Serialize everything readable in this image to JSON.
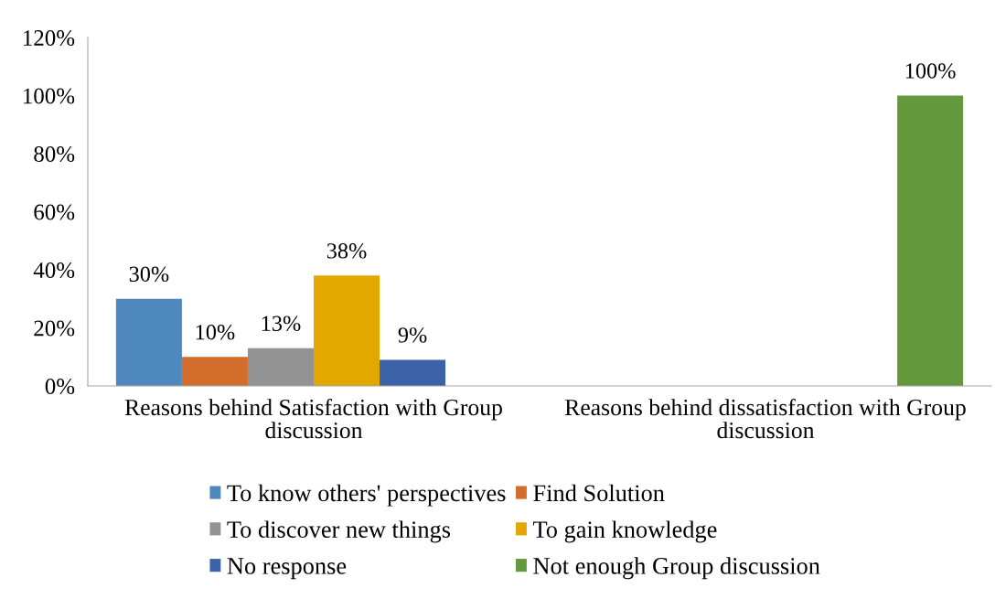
{
  "chart_data": {
    "type": "bar",
    "categories": [
      "Reasons behind Satisfaction with Group discussion",
      "Reasons behind dissatisfaction with Group discussion"
    ],
    "series": [
      {
        "name": "To know others' perspectives",
        "color": "#4f88bc",
        "values": [
          30,
          null
        ],
        "value_labels": [
          "30%",
          null
        ]
      },
      {
        "name": "Find Solution",
        "color": "#d36d2b",
        "values": [
          10,
          null
        ],
        "value_labels": [
          "10%",
          null
        ]
      },
      {
        "name": "To discover new things",
        "color": "#939393",
        "values": [
          13,
          null
        ],
        "value_labels": [
          "13%",
          null
        ]
      },
      {
        "name": "To gain knowledge",
        "color": "#e2a800",
        "values": [
          38,
          null
        ],
        "value_labels": [
          "38%",
          null
        ]
      },
      {
        "name": "No response",
        "color": "#3c62aa",
        "values": [
          9,
          null
        ],
        "value_labels": [
          "9%",
          null
        ]
      },
      {
        "name": "Not enough Group discussion",
        "color": "#63993c",
        "values": [
          null,
          100
        ],
        "value_labels": [
          null,
          "100%"
        ]
      }
    ],
    "ylim": [
      0,
      120
    ],
    "yticks": [
      {
        "value": 0,
        "label": "0%"
      },
      {
        "value": 20,
        "label": "20%"
      },
      {
        "value": 40,
        "label": "40%"
      },
      {
        "value": 60,
        "label": "60%"
      },
      {
        "value": 80,
        "label": "80%"
      },
      {
        "value": 100,
        "label": "100%"
      },
      {
        "value": 120,
        "label": "120%"
      }
    ],
    "grid": false,
    "legend": "bottom"
  }
}
